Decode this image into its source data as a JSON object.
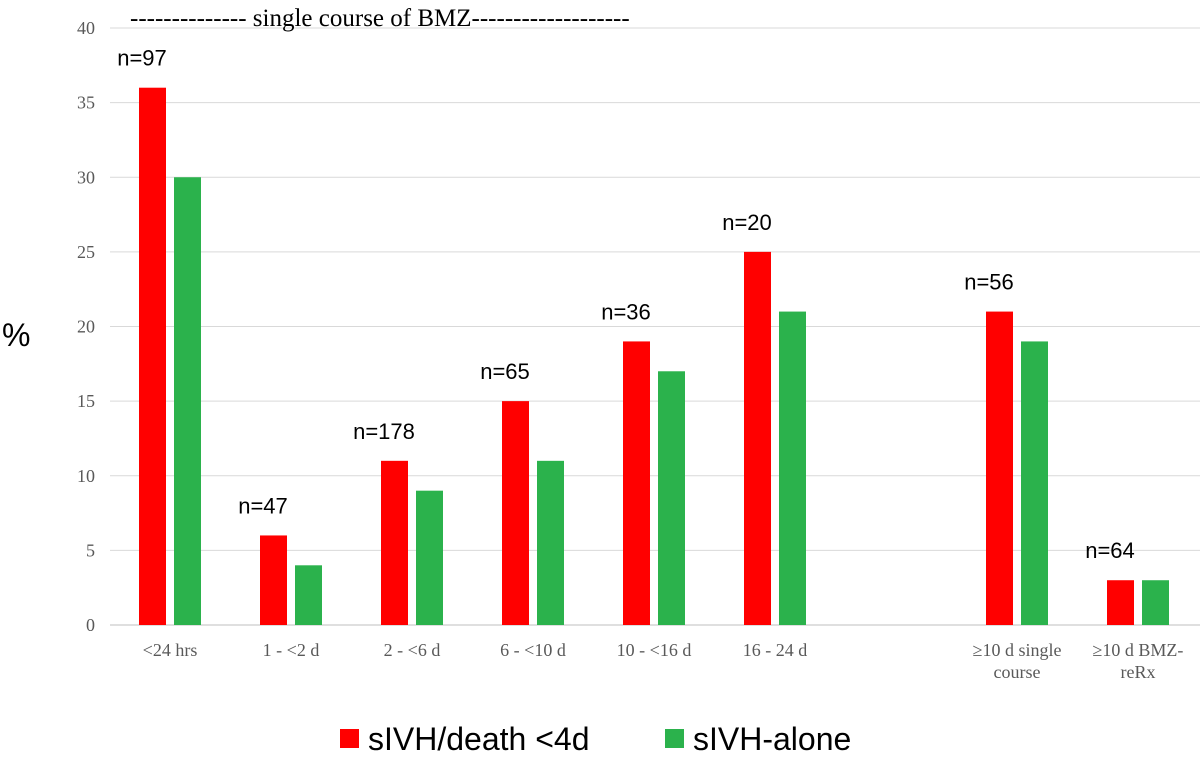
{
  "chart_data": {
    "type": "bar",
    "title": "-------------- single course of BMZ-------------------",
    "xlabel": "",
    "ylabel": "%",
    "ylim": [
      0,
      40
    ],
    "yticks": [
      0,
      5,
      10,
      15,
      20,
      25,
      30,
      35,
      40
    ],
    "grid": true,
    "legend_position": "bottom",
    "categories": [
      "<24 hrs",
      "1 - <2 d",
      "2 - <6 d",
      "6 - <10 d",
      "10 - <16 d",
      "16 - 24 d",
      "≥10 d single course",
      "≥10 d BMZ-reRx"
    ],
    "category_lines": [
      [
        "<24 hrs"
      ],
      [
        "1 - <2 d"
      ],
      [
        "2 - <6 d"
      ],
      [
        "6 - <10 d"
      ],
      [
        "10 - <16 d"
      ],
      [
        "16 - 24 d"
      ],
      [
        "≥10 d single",
        "course"
      ],
      [
        "≥10 d BMZ-",
        "reRx"
      ]
    ],
    "n_labels": [
      "n=97",
      "n=47",
      "n=178",
      "n=65",
      "n=36",
      "n=20",
      "n=56",
      "n=64"
    ],
    "series": [
      {
        "name": "sIVH/death <4d",
        "color": "#ff0000",
        "values": [
          36,
          6,
          11,
          15,
          19,
          25,
          21,
          3
        ]
      },
      {
        "name": "sIVH-alone",
        "color": "#2bb24c",
        "values": [
          30,
          4,
          9,
          11,
          17,
          21,
          19,
          3
        ]
      }
    ]
  }
}
